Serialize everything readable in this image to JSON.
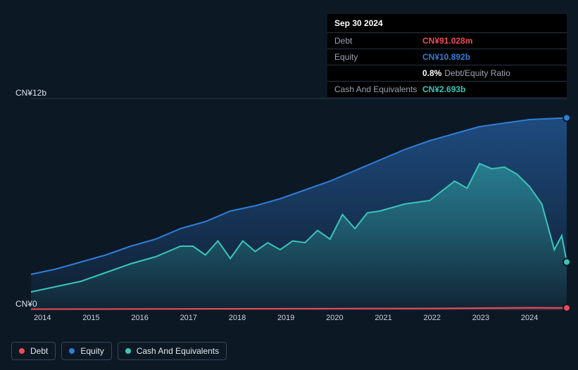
{
  "tooltip": {
    "date": "Sep 30 2024",
    "rows": [
      {
        "label": "Debt",
        "value": "CN¥91.028m",
        "color": "#f04b55"
      },
      {
        "label": "Equity",
        "value": "CN¥10.892b",
        "color": "#2f7ed8"
      },
      {
        "label": "",
        "value": "0.8%",
        "suffix": "Debt/Equity Ratio",
        "color": "#ffffff"
      },
      {
        "label": "Cash And Equivalents",
        "value": "CN¥2.693b",
        "color": "#39c6b9"
      }
    ]
  },
  "chart": {
    "type": "area",
    "background": "#0d1825",
    "grid_color": "#2a3442",
    "y_axis": {
      "top_label": "CN¥12b",
      "bottom_label": "CN¥0",
      "min": 0,
      "max": 12
    },
    "x_axis": {
      "ticks": [
        "2014",
        "2015",
        "2016",
        "2017",
        "2018",
        "2019",
        "2020",
        "2021",
        "2022",
        "2023",
        "2024"
      ],
      "min": 2014,
      "max": 2024.75
    },
    "series": {
      "equity": {
        "label": "Equity",
        "color": "#2f7ed8",
        "fill_top": "rgba(47,126,216,0.5)",
        "fill_bottom": "rgba(47,126,216,0.05)",
        "points": [
          [
            2014,
            2.0
          ],
          [
            2014.5,
            2.3
          ],
          [
            2015,
            2.7
          ],
          [
            2015.5,
            3.1
          ],
          [
            2016,
            3.6
          ],
          [
            2016.5,
            4.0
          ],
          [
            2017,
            4.6
          ],
          [
            2017.5,
            5.0
          ],
          [
            2018,
            5.6
          ],
          [
            2018.5,
            5.9
          ],
          [
            2019,
            6.3
          ],
          [
            2019.5,
            6.8
          ],
          [
            2020,
            7.3
          ],
          [
            2020.5,
            7.9
          ],
          [
            2021,
            8.5
          ],
          [
            2021.5,
            9.1
          ],
          [
            2022,
            9.6
          ],
          [
            2022.5,
            10.0
          ],
          [
            2023,
            10.4
          ],
          [
            2023.5,
            10.6
          ],
          [
            2024,
            10.8
          ],
          [
            2024.75,
            10.9
          ]
        ]
      },
      "cash": {
        "label": "Cash And Equivalents",
        "color": "#39c6b9",
        "fill_top": "rgba(57,198,185,0.45)",
        "fill_bottom": "rgba(57,198,185,0.04)",
        "points": [
          [
            2014,
            1.0
          ],
          [
            2014.5,
            1.3
          ],
          [
            2015,
            1.6
          ],
          [
            2015.5,
            2.1
          ],
          [
            2016,
            2.6
          ],
          [
            2016.5,
            3.0
          ],
          [
            2017,
            3.6
          ],
          [
            2017.25,
            3.6
          ],
          [
            2017.5,
            3.1
          ],
          [
            2017.75,
            3.9
          ],
          [
            2018,
            2.9
          ],
          [
            2018.25,
            3.9
          ],
          [
            2018.5,
            3.3
          ],
          [
            2018.75,
            3.8
          ],
          [
            2019,
            3.4
          ],
          [
            2019.25,
            3.9
          ],
          [
            2019.5,
            3.8
          ],
          [
            2019.75,
            4.5
          ],
          [
            2020,
            4.0
          ],
          [
            2020.25,
            5.4
          ],
          [
            2020.5,
            4.6
          ],
          [
            2020.75,
            5.5
          ],
          [
            2021,
            5.6
          ],
          [
            2021.5,
            6.0
          ],
          [
            2022,
            6.2
          ],
          [
            2022.5,
            7.3
          ],
          [
            2022.75,
            6.9
          ],
          [
            2023,
            8.3
          ],
          [
            2023.25,
            8.0
          ],
          [
            2023.5,
            8.1
          ],
          [
            2023.75,
            7.7
          ],
          [
            2024,
            7.0
          ],
          [
            2024.25,
            6.0
          ],
          [
            2024.5,
            3.4
          ],
          [
            2024.65,
            4.2
          ],
          [
            2024.75,
            2.7
          ]
        ]
      },
      "debt": {
        "label": "Debt",
        "color": "#f04b55",
        "fill_top": "rgba(240,75,85,0.6)",
        "fill_bottom": "rgba(240,75,85,0.05)",
        "points": [
          [
            2014,
            0.02
          ],
          [
            2016,
            0.03
          ],
          [
            2018,
            0.04
          ],
          [
            2020,
            0.05
          ],
          [
            2022,
            0.06
          ],
          [
            2023,
            0.08
          ],
          [
            2024,
            0.1
          ],
          [
            2024.75,
            0.091
          ]
        ]
      }
    },
    "markers": [
      {
        "series": "equity",
        "x": 2024.75,
        "y": 10.9
      },
      {
        "series": "cash",
        "x": 2024.75,
        "y": 2.7
      },
      {
        "series": "debt",
        "x": 2024.75,
        "y": 0.091
      }
    ]
  },
  "legend": [
    {
      "label": "Debt",
      "color": "#f04b55"
    },
    {
      "label": "Equity",
      "color": "#2f7ed8"
    },
    {
      "label": "Cash And Equivalents",
      "color": "#39c6b9"
    }
  ]
}
